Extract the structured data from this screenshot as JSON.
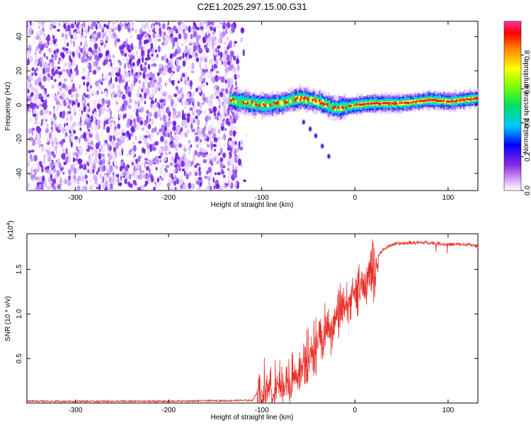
{
  "title": "C2E1.2025.297.15.00.G31",
  "chart_data": [
    {
      "type": "heatmap",
      "xlabel": "Height of straight line (km)",
      "ylabel": "Frequency (Hz)",
      "xlim": [
        -352,
        132
      ],
      "ylim": [
        -50,
        49
      ],
      "xticks": [
        -300,
        -200,
        -100,
        0,
        100
      ],
      "yticks": [
        -40,
        -20,
        0,
        20,
        40
      ],
      "colorbar": {
        "label": "Normalized spectral amplitude",
        "range": [
          0,
          1
        ],
        "ticks": [
          "0.0",
          "0.2",
          "0.4",
          "0.6",
          "0.8"
        ]
      },
      "noise_region_x": [
        -352,
        -125
      ],
      "signal_band": {
        "x": [
          -135,
          -100,
          -80,
          -60,
          -40,
          -20,
          0,
          20,
          50,
          80,
          100,
          132
        ],
        "freq": [
          3,
          0,
          1,
          4,
          2,
          -2,
          0,
          1,
          1,
          3,
          2,
          4
        ]
      },
      "descending_trace": {
        "x": [
          -55,
          -48,
          -42,
          -35,
          -28
        ],
        "freq": [
          -10,
          -14,
          -18,
          -24,
          -30
        ]
      }
    },
    {
      "type": "line",
      "xlabel": "Height of straight line (km)",
      "ylabel": "SNR (10 * v/v)",
      "scale_label": "(x10",
      "scale_exp": "4",
      "xlim": [
        -352,
        132
      ],
      "ylim": [
        0,
        1.9
      ],
      "xticks": [
        -300,
        -200,
        -100,
        0,
        100
      ],
      "yticks": [
        "0.5",
        "1.0",
        "1.5"
      ],
      "series": [
        {
          "color": "#e8302a",
          "x": [
            -352,
            -300,
            -200,
            -110,
            -100,
            -95,
            -90,
            -80,
            -70,
            -60,
            -50,
            -40,
            -30,
            -20,
            -10,
            0,
            10,
            20,
            30,
            40,
            60,
            80,
            100,
            120,
            132
          ],
          "y": [
            0.02,
            0.02,
            0.02,
            0.03,
            0.2,
            0.25,
            0.3,
            0.3,
            0.32,
            0.45,
            0.6,
            0.75,
            0.9,
            1.05,
            1.2,
            1.3,
            1.45,
            1.6,
            1.72,
            1.78,
            1.8,
            1.8,
            1.78,
            1.78,
            1.76
          ]
        }
      ]
    }
  ]
}
